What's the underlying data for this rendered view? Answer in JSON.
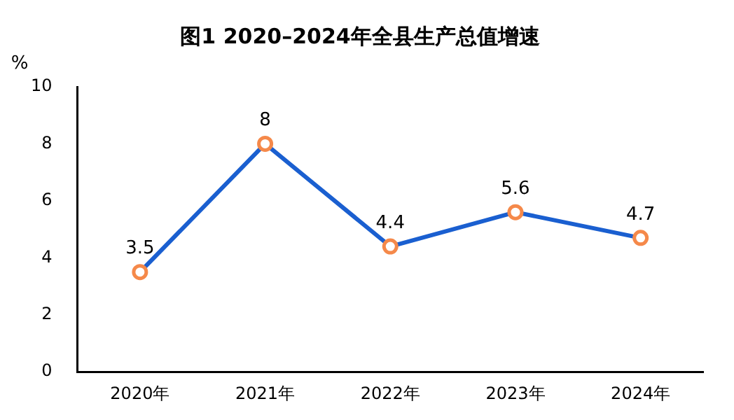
{
  "chart_data": {
    "type": "line",
    "title": "图1 2020–2024年全县生产总值增速",
    "ylabel": "%",
    "categories": [
      "2020年",
      "2021年",
      "2022年",
      "2023年",
      "2024年"
    ],
    "values": [
      3.5,
      8,
      4.4,
      5.6,
      4.7
    ],
    "color": "#1a5fd0",
    "colors": [
      "#f5894a",
      "#f5894a",
      "#f5894a",
      "#f5894a",
      "#f5894a"
    ],
    "ylim": [
      0,
      10
    ],
    "yticks": [
      0,
      2,
      4,
      6,
      8,
      10
    ],
    "grid": false,
    "legend": false,
    "marker": "circle",
    "line_style": "solid",
    "data_labels": true
  }
}
